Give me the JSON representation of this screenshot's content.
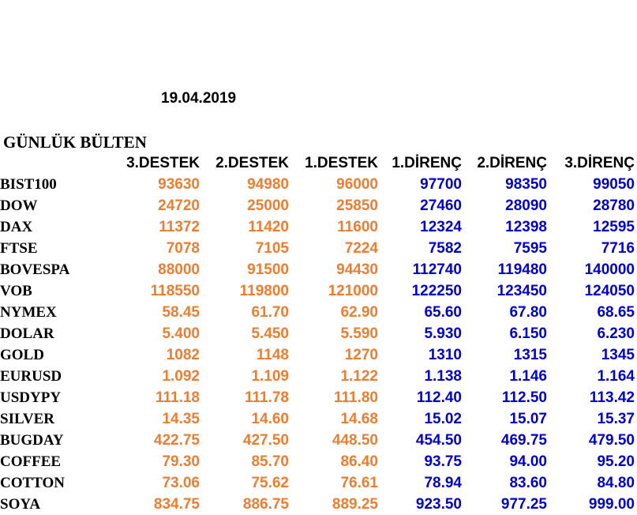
{
  "date": "19.04.2019",
  "title": "GÜNLÜK BÜLTEN",
  "headers": [
    "3.DESTEK",
    "2.DESTEK",
    "1.DESTEK",
    "1.DİRENÇ",
    "2.DİRENÇ",
    "3.DİRENÇ"
  ],
  "colors": {
    "support": "#ed7d31",
    "resistance": "#0000cc",
    "text": "#000000"
  },
  "rows": [
    {
      "name": "BIST100",
      "values": [
        "93630",
        "94980",
        "96000",
        "97700",
        "98350",
        "99050"
      ]
    },
    {
      "name": "DOW",
      "values": [
        "24720",
        "25000",
        "25850",
        "27460",
        "28090",
        "28780"
      ]
    },
    {
      "name": "DAX",
      "values": [
        "11372",
        "11420",
        "11600",
        "12324",
        "12398",
        "12595"
      ]
    },
    {
      "name": "FTSE",
      "values": [
        "7078",
        "7105",
        "7224",
        "7582",
        "7595",
        "7716"
      ]
    },
    {
      "name": "BOVESPA",
      "values": [
        "88000",
        "91500",
        "94430",
        "112740",
        "119480",
        "140000"
      ]
    },
    {
      "name": "VOB",
      "values": [
        "118550",
        "119800",
        "121000",
        "122250",
        "123450",
        "124050"
      ]
    },
    {
      "name": "NYMEX",
      "values": [
        "58.45",
        "61.70",
        "62.90",
        "65.60",
        "67.80",
        "68.65"
      ]
    },
    {
      "name": "DOLAR",
      "values": [
        "5.400",
        "5.450",
        "5.590",
        "5.930",
        "6.150",
        "6.230"
      ]
    },
    {
      "name": "GOLD",
      "values": [
        "1082",
        "1148",
        "1270",
        "1310",
        "1315",
        "1345"
      ]
    },
    {
      "name": "EURUSD",
      "values": [
        "1.092",
        "1.109",
        "1.122",
        "1.138",
        "1.146",
        "1.164"
      ]
    },
    {
      "name": "USDYPY",
      "values": [
        "111.18",
        "111.78",
        "111.80",
        "112.40",
        "112.50",
        "113.42"
      ]
    },
    {
      "name": "SILVER",
      "values": [
        "14.35",
        "14.60",
        "14.68",
        "15.02",
        "15.07",
        "15.37"
      ]
    },
    {
      "name": "BUGDAY",
      "values": [
        "422.75",
        "427.50",
        "448.50",
        "454.50",
        "469.75",
        "479.50"
      ]
    },
    {
      "name": "COFFEE",
      "values": [
        "79.30",
        "85.70",
        "86.40",
        "93.75",
        "94.00",
        "95.20"
      ]
    },
    {
      "name": "COTTON",
      "values": [
        "73.06",
        "75.62",
        "76.61",
        "78.94",
        "83.60",
        "84.80"
      ]
    },
    {
      "name": "SOYA",
      "values": [
        "834.75",
        "886.75",
        "889.25",
        "923.50",
        "977.25",
        "999.00"
      ]
    }
  ]
}
